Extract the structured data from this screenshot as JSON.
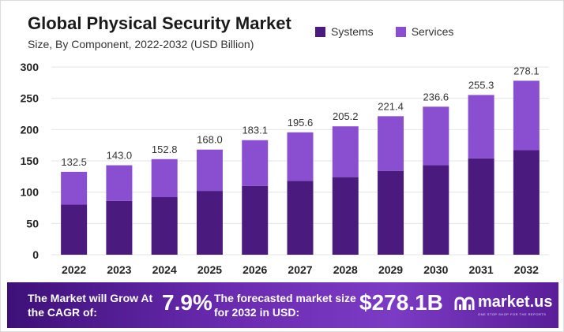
{
  "chart_data": {
    "type": "bar",
    "stacked": true,
    "title": "Global Physical Security Market",
    "subtitle": "Size, By Component, 2022-2032 (USD Billion)",
    "categories": [
      "2022",
      "2023",
      "2024",
      "2025",
      "2026",
      "2027",
      "2028",
      "2029",
      "2030",
      "2031",
      "2032"
    ],
    "series": [
      {
        "name": "Systems",
        "color": "#4a1a7e",
        "values": [
          80,
          86,
          92,
          102,
          110,
          118,
          124,
          134,
          143,
          154,
          167
        ]
      },
      {
        "name": "Services",
        "color": "#8a4ed0",
        "values": [
          52.5,
          57,
          60.8,
          66,
          73.1,
          77.6,
          81.2,
          87.4,
          93.6,
          101.3,
          111.1
        ]
      }
    ],
    "totals": [
      "132.5",
      "143.0",
      "152.8",
      "168.0",
      "183.1",
      "195.6",
      "205.2",
      "221.4",
      "236.6",
      "255.3",
      "278.1"
    ],
    "ylim": [
      0,
      300
    ],
    "yticks": [
      0,
      50,
      100,
      150,
      200,
      250,
      300
    ],
    "grid": "horizontal",
    "legend": "top-right"
  },
  "banner": {
    "cagr_text": "The Market will Grow At the CAGR of:",
    "cagr_value": "7.9%",
    "forecast_text": "The forecasted market size for 2032 in USD:",
    "forecast_value": "$278.1B",
    "logo_name": "market.us",
    "logo_tagline": "ONE STOP SHOP FOR THE REPORTS"
  }
}
